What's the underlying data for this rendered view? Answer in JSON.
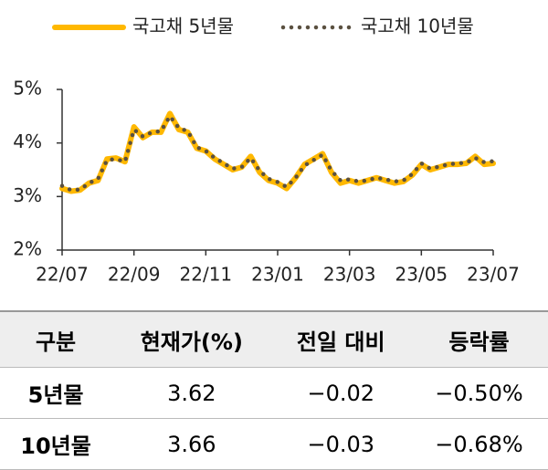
{
  "chart_data": {
    "type": "line",
    "categories": [
      "22/07",
      null,
      null,
      null,
      null,
      null,
      null,
      null,
      "22/09",
      null,
      null,
      null,
      null,
      null,
      null,
      null,
      "22/11",
      null,
      null,
      null,
      null,
      null,
      null,
      null,
      "23/01",
      null,
      null,
      null,
      null,
      null,
      null,
      null,
      "23/03",
      null,
      null,
      null,
      null,
      null,
      null,
      null,
      "23/05",
      null,
      null,
      null,
      null,
      null,
      null,
      null,
      "23/07"
    ],
    "series": [
      {
        "name": "국고채 5년물",
        "color": "#FFB800",
        "values": [
          3.15,
          3.1,
          3.12,
          3.25,
          3.3,
          3.7,
          3.72,
          3.65,
          4.3,
          4.1,
          4.2,
          4.2,
          4.55,
          4.25,
          4.2,
          3.9,
          3.85,
          3.7,
          3.6,
          3.5,
          3.55,
          3.75,
          3.45,
          3.3,
          3.25,
          3.15,
          3.35,
          3.6,
          3.7,
          3.8,
          3.45,
          3.25,
          3.3,
          3.25,
          3.3,
          3.35,
          3.3,
          3.25,
          3.28,
          3.4,
          3.6,
          3.5,
          3.55,
          3.6,
          3.6,
          3.62,
          3.75,
          3.6,
          3.62
        ]
      },
      {
        "name": "국고채 10년물",
        "color": "#5A5040",
        "values": [
          3.2,
          3.12,
          3.13,
          3.25,
          3.33,
          3.68,
          3.7,
          3.65,
          4.25,
          4.12,
          4.2,
          4.22,
          4.5,
          4.28,
          4.22,
          3.92,
          3.85,
          3.72,
          3.62,
          3.52,
          3.55,
          3.72,
          3.48,
          3.33,
          3.27,
          3.18,
          3.35,
          3.58,
          3.68,
          3.78,
          3.48,
          3.3,
          3.32,
          3.28,
          3.3,
          3.35,
          3.32,
          3.28,
          3.3,
          3.42,
          3.62,
          3.52,
          3.56,
          3.6,
          3.62,
          3.63,
          3.72,
          3.64,
          3.66
        ]
      }
    ],
    "ylim": [
      2,
      5
    ],
    "yticks": [
      {
        "value": 2,
        "label": "2%"
      },
      {
        "value": 3,
        "label": "3%"
      },
      {
        "value": 4,
        "label": "4%"
      },
      {
        "value": 5,
        "label": "5%"
      }
    ]
  },
  "table": {
    "header": [
      "구분",
      "현재가(%)",
      "전일 대비",
      "등락률"
    ],
    "rows": [
      [
        "5년물",
        "3.62",
        "−0.02",
        "−0.50%"
      ],
      [
        "10년물",
        "3.66",
        "−0.03",
        "−0.68%"
      ]
    ]
  }
}
